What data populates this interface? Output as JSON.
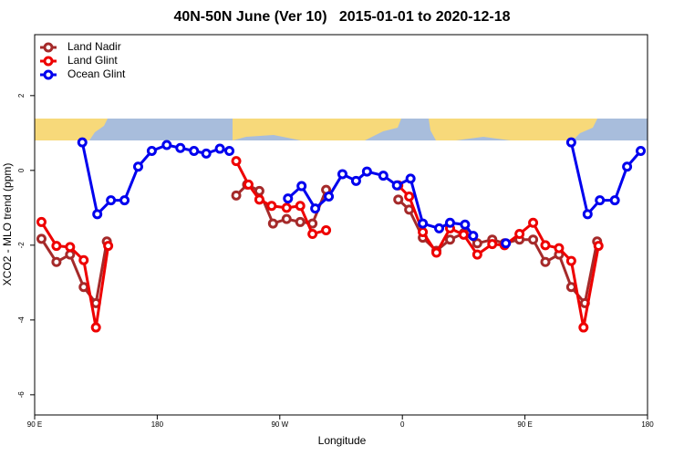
{
  "chart_data": {
    "type": "line",
    "title": "40N-50N June (Ver 10)   2015-01-01 to 2020-12-18",
    "x_label": "Longitude",
    "y_label": "XCO2 - MLO trend (ppm)",
    "xlim": [
      90,
      540
    ],
    "ylim": [
      -6.54,
      3.63
    ],
    "xticks": [
      {
        "value": 90,
        "label": "90 E"
      },
      180,
      {
        "value": 270,
        "label": "90 W"
      },
      {
        "value": 360,
        "label": "0"
      },
      {
        "value": 450,
        "label": "90 E"
      },
      {
        "value": 540,
        "label": "180"
      }
    ],
    "yticks": [
      -6,
      -4,
      -2,
      0,
      2
    ],
    "grid": false,
    "legend": "top-left",
    "series": [
      {
        "name": "Land Nadir",
        "color": "#a52a2a",
        "x": [
          95,
          106,
          116,
          126,
          135,
          143,
          null,
          238,
          246,
          255,
          265,
          275,
          285,
          294,
          304,
          null,
          357,
          365,
          375,
          385,
          395,
          405,
          415,
          426,
          435,
          446,
          456,
          465,
          475,
          484,
          494,
          503
        ],
        "values": [
          -1.83,
          -2.45,
          -2.25,
          -3.12,
          -3.55,
          -1.9,
          null,
          -0.67,
          -0.38,
          -0.55,
          -1.42,
          -1.3,
          -1.38,
          -1.42,
          -0.52,
          null,
          -0.78,
          -1.05,
          -1.8,
          -2.15,
          -1.85,
          -1.68,
          -1.95,
          -1.85,
          -1.95,
          -1.85,
          -1.85,
          -2.45,
          -2.25,
          -3.12,
          -3.55,
          -1.9
        ]
      },
      {
        "name": "Land Glint",
        "color": "#ee0000",
        "x": [
          95,
          106,
          116,
          126,
          135,
          144,
          null,
          238,
          247,
          255,
          264,
          275,
          285,
          294,
          304,
          null,
          357,
          365,
          375,
          385,
          395,
          405,
          415,
          426,
          435,
          446,
          456,
          465,
          475,
          484,
          493,
          504
        ],
        "values": [
          -1.38,
          -2.02,
          -2.05,
          -2.4,
          -4.2,
          -2.02,
          null,
          0.25,
          -0.38,
          -0.78,
          -0.95,
          -1.0,
          -0.95,
          -1.7,
          -1.6,
          null,
          -0.4,
          -0.7,
          -1.65,
          -2.2,
          -1.55,
          -1.72,
          -2.25,
          -1.97,
          -2.0,
          -1.7,
          -1.4,
          -2.0,
          -2.08,
          -2.42,
          -4.2,
          -2.02
        ]
      },
      {
        "name": "Ocean Glint",
        "color": "#0000ee",
        "x": [
          125,
          136,
          146,
          156,
          166,
          176,
          187,
          197,
          207,
          216,
          226,
          233,
          null,
          276,
          286,
          296,
          306,
          316,
          326,
          334,
          346,
          356,
          366,
          375,
          387,
          395,
          406,
          412,
          null,
          436,
          null,
          484,
          496,
          505,
          516,
          525,
          535
        ],
        "values": [
          0.75,
          -1.17,
          -0.8,
          -0.8,
          0.1,
          0.52,
          0.68,
          0.6,
          0.52,
          0.45,
          0.58,
          0.52,
          null,
          -0.75,
          -0.42,
          -1.02,
          -0.7,
          -0.1,
          -0.28,
          -0.03,
          -0.14,
          -0.4,
          -0.22,
          -1.42,
          -1.55,
          -1.4,
          -1.45,
          -1.75,
          null,
          -1.95,
          null,
          0.75,
          -1.17,
          -0.8,
          -0.8,
          0.1,
          0.52
        ]
      }
    ]
  }
}
